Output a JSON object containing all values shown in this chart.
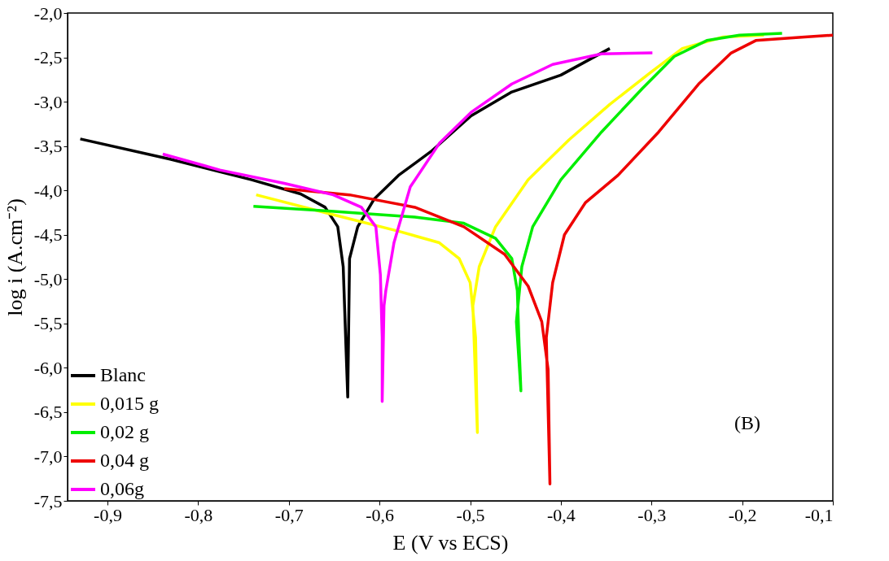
{
  "chart_data": {
    "type": "line",
    "xlabel": "E (V vs ECS)",
    "ylabel": "log i (A.cm⁻²)",
    "xlim": [
      -0.944,
      -0.1
    ],
    "ylim": [
      -7.5,
      -2.0
    ],
    "xticks": [
      {
        "value": -0.9,
        "label": "-0,9"
      },
      {
        "value": -0.8,
        "label": "-0,8"
      },
      {
        "value": -0.7,
        "label": "-0,7"
      },
      {
        "value": -0.6,
        "label": "-0,6"
      },
      {
        "value": -0.5,
        "label": "-0,5"
      },
      {
        "value": -0.4,
        "label": "-0,4"
      },
      {
        "value": -0.3,
        "label": "-0,3"
      },
      {
        "value": -0.2,
        "label": "-0,2"
      },
      {
        "value": -0.1,
        "label": "-0,1"
      }
    ],
    "yticks": [
      {
        "value": -2.0,
        "label": "-2,0"
      },
      {
        "value": -2.5,
        "label": "-2,5"
      },
      {
        "value": -3.0,
        "label": "-3,0"
      },
      {
        "value": -3.5,
        "label": "-3,5"
      },
      {
        "value": -4.0,
        "label": "-4,0"
      },
      {
        "value": -4.5,
        "label": "-4,5"
      },
      {
        "value": -5.0,
        "label": "-5,0"
      },
      {
        "value": -5.5,
        "label": "-5,5"
      },
      {
        "value": -6.0,
        "label": "-6,0"
      },
      {
        "value": -6.5,
        "label": "-6,5"
      },
      {
        "value": -7.0,
        "label": "-7,0"
      },
      {
        "value": -7.5,
        "label": "-7,5"
      }
    ],
    "grid": false,
    "legend": "bottom left",
    "marker": "none",
    "line_style": "solid",
    "annotations": [
      "(B)"
    ],
    "series": [
      {
        "name": "Blanc",
        "color": "#000000",
        "x": [
          -0.93,
          -0.83,
          -0.741,
          -0.687,
          -0.66,
          -0.646,
          -0.64,
          -0.637,
          -0.635,
          -0.633,
          -0.624,
          -0.606,
          -0.579,
          -0.543,
          -0.499,
          -0.454,
          -0.4,
          -0.346
        ],
        "values": [
          -3.42,
          -3.65,
          -3.88,
          -4.04,
          -4.19,
          -4.41,
          -4.86,
          -5.75,
          -6.33,
          -4.77,
          -4.41,
          -4.1,
          -3.83,
          -3.56,
          -3.16,
          -2.89,
          -2.7,
          -2.4
        ]
      },
      {
        "name": "0,015 g",
        "color": "#ffff00",
        "x": [
          -0.736,
          -0.66,
          -0.579,
          -0.534,
          -0.512,
          -0.5,
          -0.494,
          -0.492,
          -0.497,
          -0.49,
          -0.472,
          -0.436,
          -0.391,
          -0.346,
          -0.301,
          -0.266,
          -0.221,
          -0.176
        ],
        "values": [
          -4.05,
          -4.25,
          -4.46,
          -4.59,
          -4.77,
          -5.04,
          -5.66,
          -6.73,
          -5.3,
          -4.86,
          -4.41,
          -3.88,
          -3.43,
          -3.03,
          -2.67,
          -2.4,
          -2.27,
          -2.25
        ]
      },
      {
        "name": "0,02 g",
        "color": "#00ee00",
        "x": [
          -0.739,
          -0.66,
          -0.561,
          -0.507,
          -0.472,
          -0.454,
          -0.448,
          -0.446,
          -0.444,
          -0.449,
          -0.443,
          -0.431,
          -0.4,
          -0.355,
          -0.31,
          -0.275,
          -0.239,
          -0.203,
          -0.156
        ],
        "values": [
          -4.18,
          -4.23,
          -4.3,
          -4.37,
          -4.54,
          -4.77,
          -5.13,
          -5.75,
          -6.26,
          -5.48,
          -4.86,
          -4.41,
          -3.88,
          -3.34,
          -2.85,
          -2.49,
          -2.31,
          -2.25,
          -2.23
        ]
      },
      {
        "name": "0,04 g",
        "color": "#ee0000",
        "x": [
          -0.705,
          -0.633,
          -0.561,
          -0.507,
          -0.462,
          -0.436,
          -0.421,
          -0.414,
          -0.412,
          -0.416,
          -0.409,
          -0.396,
          -0.373,
          -0.337,
          -0.292,
          -0.248,
          -0.212,
          -0.185,
          -0.131,
          -0.1
        ],
        "values": [
          -3.98,
          -4.05,
          -4.19,
          -4.41,
          -4.72,
          -5.08,
          -5.48,
          -6.02,
          -7.31,
          -5.66,
          -5.04,
          -4.5,
          -4.14,
          -3.83,
          -3.34,
          -2.8,
          -2.45,
          -2.31,
          -2.27,
          -2.25
        ]
      },
      {
        "name": "0,06g",
        "color": "#ff00ff",
        "x": [
          -0.839,
          -0.776,
          -0.705,
          -0.651,
          -0.62,
          -0.604,
          -0.599,
          -0.597,
          -0.597,
          -0.595,
          -0.593,
          -0.584,
          -0.566,
          -0.534,
          -0.499,
          -0.454,
          -0.409,
          -0.355,
          -0.299
        ],
        "values": [
          -3.59,
          -3.77,
          -3.92,
          -4.05,
          -4.19,
          -4.41,
          -4.95,
          -5.66,
          -6.38,
          -5.3,
          -5.13,
          -4.59,
          -3.96,
          -3.47,
          -3.12,
          -2.8,
          -2.58,
          -2.46,
          -2.45
        ]
      }
    ]
  }
}
